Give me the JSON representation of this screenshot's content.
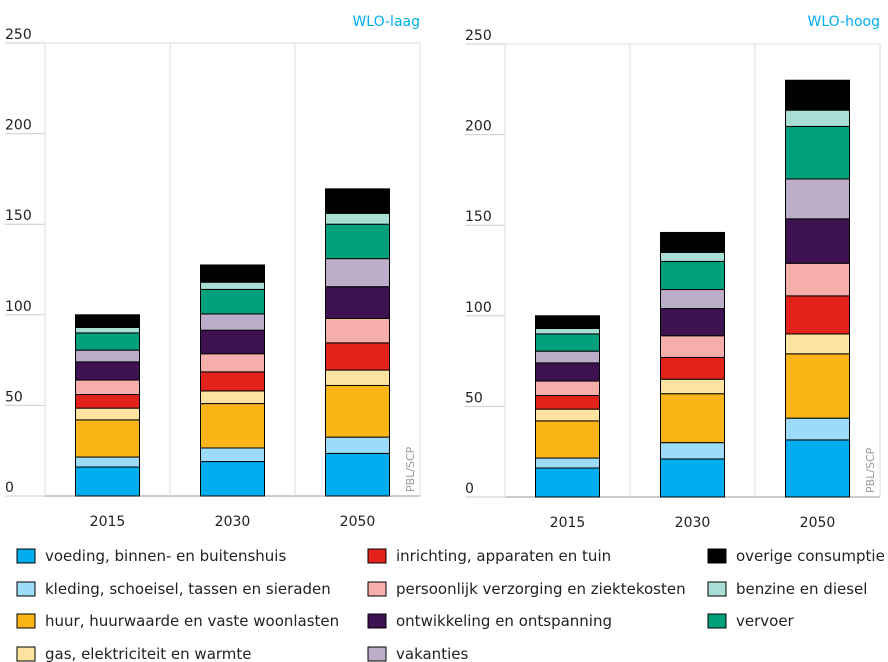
{
  "chart_data": [
    {
      "type": "bar",
      "stacked": true,
      "title": "WLO-laag",
      "source": "PBL/SCP",
      "categories": [
        "2015",
        "2030",
        "2050"
      ],
      "ylim": [
        0,
        250
      ],
      "yticks": [
        0,
        50,
        100,
        150,
        200,
        250
      ],
      "series": [
        {
          "name": "voeding, binnen- en buitenshuis",
          "color": "#00aeef",
          "values": [
            16,
            19,
            23.5
          ]
        },
        {
          "name": "kleding, schoeisel, tassen en sieraden",
          "color": "#9ddcf9",
          "values": [
            5.5,
            7.5,
            9
          ]
        },
        {
          "name": "huur, huurwaarde en vaste woonlasten",
          "color": "#fbb516",
          "values": [
            20.5,
            24.5,
            28.5
          ]
        },
        {
          "name": "gas, elektriciteit en warmte",
          "color": "#fee3a0",
          "values": [
            6.5,
            7,
            8.5
          ]
        },
        {
          "name": "inrichting, apparaten en tuin",
          "color": "#e3231b",
          "values": [
            7.5,
            10.5,
            15
          ]
        },
        {
          "name": "persoonlijk verzorging en ziektekosten",
          "color": "#f5aeaa",
          "values": [
            8,
            10,
            13.5
          ]
        },
        {
          "name": "ontwikkeling en ontspanning",
          "color": "#3e1151",
          "values": [
            10,
            13,
            17.5
          ]
        },
        {
          "name": "vakanties",
          "color": "#bcaec8",
          "values": [
            6.5,
            9,
            15.5
          ]
        },
        {
          "name": "vervoer",
          "color": "#00a07d",
          "values": [
            9.5,
            13.5,
            19
          ]
        },
        {
          "name": "benzine en diesel",
          "color": "#a8ded4",
          "values": [
            3,
            4,
            6
          ]
        },
        {
          "name": "overige consumptie",
          "color": "#000000",
          "values": [
            7,
            9.5,
            13.5
          ]
        }
      ]
    },
    {
      "type": "bar",
      "stacked": true,
      "title": "WLO-hoog",
      "source": "PBL/SCP",
      "categories": [
        "2015",
        "2030",
        "2050"
      ],
      "ylim": [
        0,
        250
      ],
      "yticks": [
        0,
        50,
        100,
        150,
        200,
        250
      ],
      "series": [
        {
          "name": "voeding, binnen- en buitenshuis",
          "color": "#00aeef",
          "values": [
            16,
            21,
            31.5
          ]
        },
        {
          "name": "kleding, schoeisel, tassen en sieraden",
          "color": "#9ddcf9",
          "values": [
            5.5,
            9,
            12
          ]
        },
        {
          "name": "huur, huurwaarde en vaste woonlasten",
          "color": "#fbb516",
          "values": [
            20.5,
            27,
            35.5
          ]
        },
        {
          "name": "gas, elektriciteit en warmte",
          "color": "#fee3a0",
          "values": [
            6.5,
            8,
            11
          ]
        },
        {
          "name": "inrichting, apparaten en tuin",
          "color": "#e3231b",
          "values": [
            7.5,
            12,
            21
          ]
        },
        {
          "name": "persoonlijk verzorging en ziektekosten",
          "color": "#f5aeaa",
          "values": [
            8,
            12,
            18
          ]
        },
        {
          "name": "ontwikkeling en ontspanning",
          "color": "#3e1151",
          "values": [
            10,
            15,
            24.5
          ]
        },
        {
          "name": "vakanties",
          "color": "#bcaec8",
          "values": [
            6.5,
            10.5,
            22
          ]
        },
        {
          "name": "vervoer",
          "color": "#00a07d",
          "values": [
            9.5,
            15.5,
            29
          ]
        },
        {
          "name": "benzine en diesel",
          "color": "#a8ded4",
          "values": [
            3,
            5,
            9
          ]
        },
        {
          "name": "overige consumptie",
          "color": "#000000",
          "values": [
            7,
            11,
            16.5
          ]
        }
      ]
    }
  ]
}
